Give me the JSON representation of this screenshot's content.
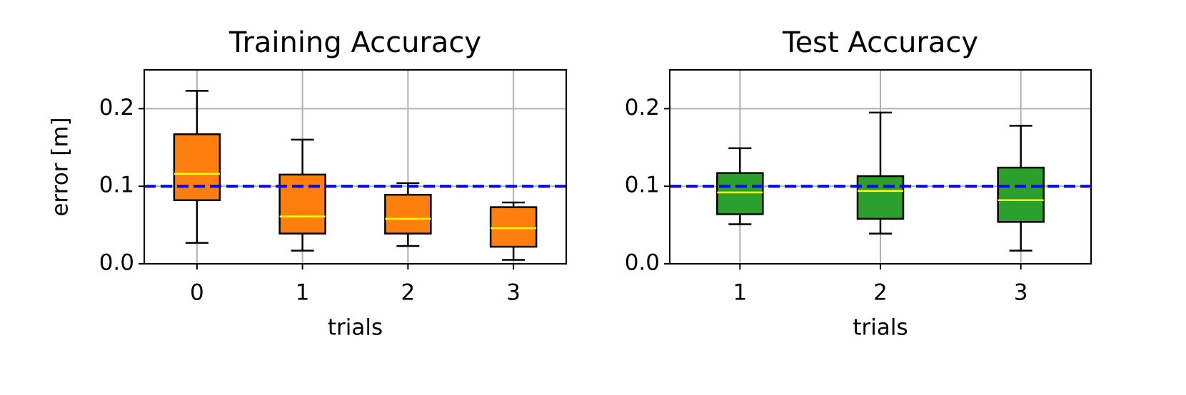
{
  "chart_data": [
    {
      "type": "box",
      "title": "Training Accuracy",
      "xlabel": "trials",
      "ylabel": "error [m]",
      "categories": [
        "0",
        "1",
        "2",
        "3"
      ],
      "whislo": [
        0.027,
        0.017,
        0.023,
        0.005
      ],
      "q1": [
        0.082,
        0.039,
        0.039,
        0.022
      ],
      "median": [
        0.116,
        0.061,
        0.058,
        0.046
      ],
      "q3": [
        0.167,
        0.115,
        0.089,
        0.073
      ],
      "whishi": [
        0.223,
        0.16,
        0.104,
        0.079
      ],
      "color": "#ff7f0e",
      "median_color": "#ffff00",
      "ylim": [
        0,
        0.25
      ],
      "yticks": [
        {
          "value": 0,
          "label": "0.0"
        },
        0.1,
        0.2
      ],
      "grid": true,
      "reference_line": {
        "value": 0.1,
        "color": "#0000ff"
      }
    },
    {
      "type": "box",
      "title": "Test Accuracy",
      "xlabel": "trials",
      "categories": [
        "1",
        "2",
        "3"
      ],
      "whislo": [
        0.051,
        0.039,
        0.017
      ],
      "q1": [
        0.064,
        0.058,
        0.054
      ],
      "median": [
        0.092,
        0.094,
        0.082
      ],
      "q3": [
        0.117,
        0.113,
        0.124
      ],
      "whishi": [
        0.149,
        0.195,
        0.178
      ],
      "color": "#2ca02c",
      "median_color": "#ffff00",
      "ylim": [
        0,
        0.25
      ],
      "yticks": [
        {
          "value": 0,
          "label": "0.0"
        },
        0.1,
        0.2
      ],
      "grid": true,
      "reference_line": {
        "value": 0.1,
        "color": "#0000ff"
      }
    }
  ]
}
